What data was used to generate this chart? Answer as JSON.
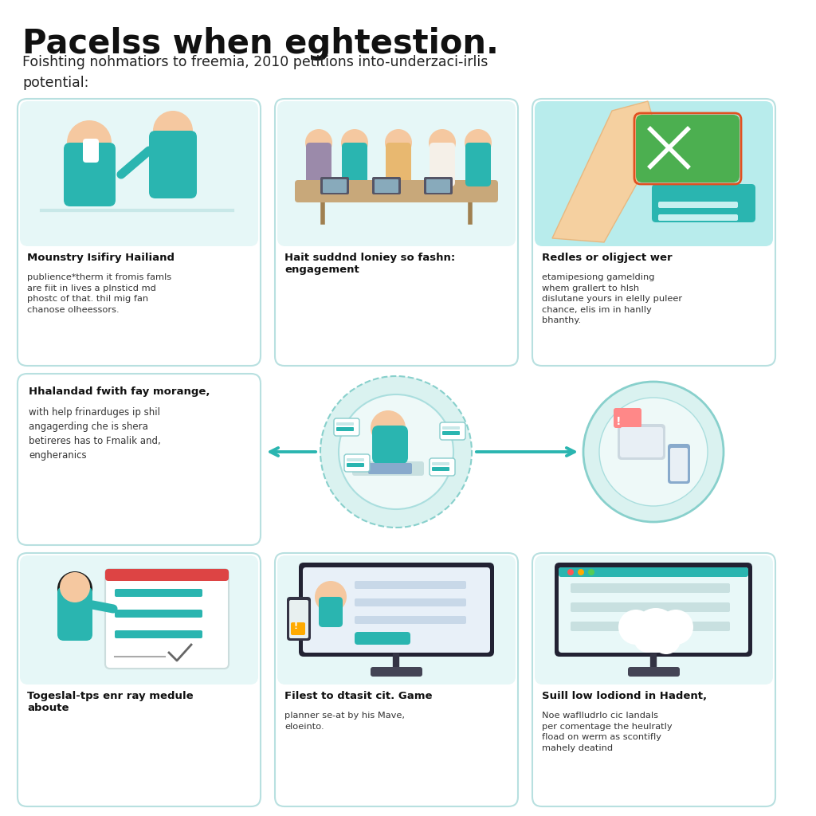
{
  "title": "Pacelss when eghtestion.",
  "subtitle": "Foishting nohmatiors to freemia, 2010 petitions into-underzaci-irlis\npotential:",
  "background_color": "#ffffff",
  "teal_color": "#2ab5b0",
  "light_teal": "#e6f7f7",
  "border_color": "#b8e0e0",
  "title_fontsize": 30,
  "subtitle_fontsize": 12.5,
  "top_row": [
    {
      "title": "Mounstry Isifiry Hailiand",
      "body": "publience*therm it fromis famls\nare fiit in lives a plnsticd md\nphostc of that. thil mig fan\nchanose olheessors.",
      "image_desc": "two_people_teal"
    },
    {
      "title": "Hait suddnd loniey so fashn:\nengagement",
      "body": "",
      "image_desc": "meeting_table"
    },
    {
      "title": "Redles or oligject wer",
      "body": "etamipesiong gamelding\nwhem grallert to hlsh\ndislutane yours in elelly puleer\nchance, elis im in hanlly\nbhanthy.",
      "image_desc": "phone_notification"
    }
  ],
  "middle_left": {
    "title": "Hhalandad fwith fay morange,",
    "body": "with help frinarduges ip shil\nangagerding che is shera\nbetireres has to Fmalik and,\nengheranics"
  },
  "bottom_row": [
    {
      "title": "Togeslal-tps enr ray medule\naboute",
      "body": "",
      "image_desc": "presenter_woman"
    },
    {
      "title": "Filest to dtasit cit. Game",
      "body": "planner se-at by his Mave,\neloeinto.",
      "image_desc": "devices_screen"
    },
    {
      "title": "Suill low lodiond in Hadent,",
      "body": "Noe waflludrlο cic landals\nper comentage the heulratly\nfload on werm as scontifly\nmahely deatind",
      "image_desc": "monitor_cloud"
    }
  ]
}
